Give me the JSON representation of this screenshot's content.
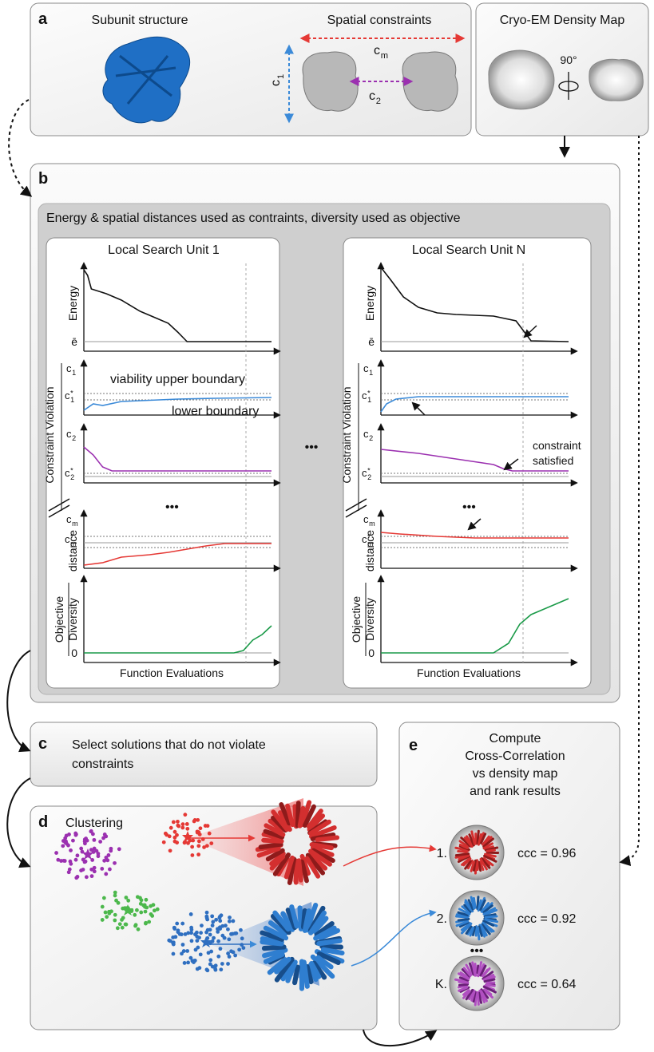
{
  "panel_a": {
    "label": "a",
    "subunit_title": "Subunit structure",
    "constraints_title": "Spatial constraints",
    "cm": {
      "base": "c",
      "sub": "m"
    },
    "c1": {
      "base": "c",
      "sub": "1"
    },
    "c2": {
      "base": "c",
      "sub": "2"
    },
    "density_title": "Cryo-EM Density Map",
    "rotation": "90°"
  },
  "panel_b": {
    "label": "b",
    "caption": "Energy & spatial distances used as contraints, diversity used as objective",
    "units": [
      "Local Search Unit 1",
      "Local Search Unit N"
    ],
    "between": "•••",
    "energy": "Energy",
    "e_bar": "ē",
    "c1": {
      "base": "c",
      "sub": "1"
    },
    "c1_star": {
      "base": "c",
      "sup": "*",
      "sub": "1"
    },
    "c2": {
      "base": "c",
      "sub": "2"
    },
    "c2_star": {
      "base": "c",
      "sup": "*",
      "sub": "2"
    },
    "cm": {
      "base": "c",
      "sub": "m"
    },
    "cm_star": {
      "base": "c",
      "sup": "*",
      "sub": "m"
    },
    "upper_boundary": "viability upper boundary",
    "lower_boundary": "lower boundary",
    "constraint_violation": "Constraint Violation",
    "dots": "•••",
    "distance": "distance",
    "objective": "Objective",
    "diversity": "Diversity",
    "zero": "0",
    "x_label": "Function Evaluations",
    "annotation": [
      "constraint",
      "satisfied"
    ]
  },
  "panel_c": {
    "label": "c",
    "text": [
      "Select solutions that do not violate",
      "constraints"
    ]
  },
  "panel_d": {
    "label": "d",
    "title": "Clustering"
  },
  "panel_e": {
    "label": "e",
    "title": [
      "Compute",
      "Cross-Correlation",
      "vs density map",
      "and rank results"
    ],
    "results": [
      {
        "rank": "1.",
        "score": "ccc = 0.96"
      },
      {
        "rank": "2.",
        "score": "ccc = 0.92"
      },
      {
        "rank": "K.",
        "score": "ccc = 0.64"
      }
    ],
    "dots": "•••"
  }
}
